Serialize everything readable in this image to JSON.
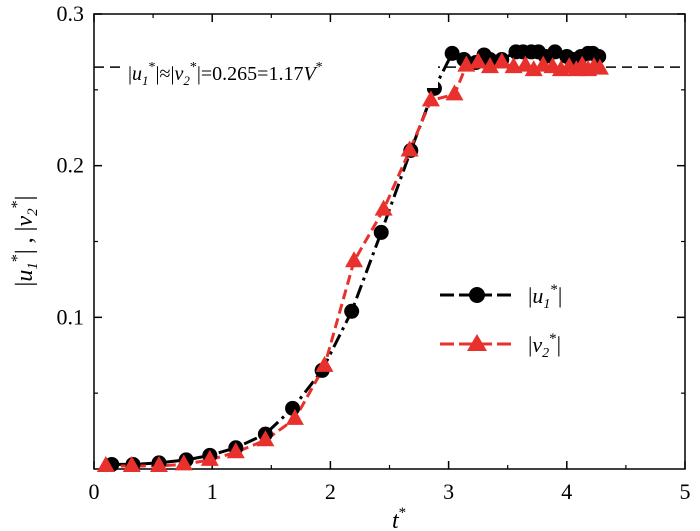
{
  "chart_data": {
    "type": "scatter",
    "xlabel": "t*",
    "ylabel": "|u1*| , |v2*|",
    "xlim": [
      0,
      5
    ],
    "ylim": [
      0,
      0.3
    ],
    "x_ticks": [
      0,
      1,
      2,
      3,
      4,
      5
    ],
    "x_tick_labels": [
      "0",
      "1",
      "2",
      "3",
      "4",
      "5"
    ],
    "y_ticks": [
      0.1,
      0.2,
      0.3
    ],
    "y_tick_labels": [
      "0.1",
      "0.2",
      "0.3"
    ],
    "grid": false,
    "legend_placement": "center-right",
    "reference_line": {
      "y": 0.265,
      "style": "dashed",
      "color": "#000000"
    },
    "annotation": "|u1*|≈|v2*|=0.265=1.17V*",
    "series": [
      {
        "name": "|u1*|",
        "color": "#000000",
        "marker": "circle",
        "line_style": "dash-dot",
        "x": [
          0.15,
          0.33,
          0.55,
          0.78,
          0.98,
          1.2,
          1.45,
          1.68,
          1.93,
          2.18,
          2.43,
          2.68,
          2.88,
          3.03,
          3.13,
          3.23,
          3.3,
          3.35,
          3.45,
          3.57,
          3.63,
          3.7,
          3.76,
          3.82,
          3.9,
          4.0,
          4.05,
          4.12,
          4.18,
          4.22,
          4.27
        ],
        "y": [
          0.003,
          0.003,
          0.004,
          0.006,
          0.009,
          0.014,
          0.023,
          0.04,
          0.065,
          0.104,
          0.156,
          0.21,
          0.251,
          0.274,
          0.27,
          0.268,
          0.273,
          0.27,
          0.27,
          0.275,
          0.275,
          0.275,
          0.275,
          0.272,
          0.275,
          0.272,
          0.27,
          0.272,
          0.274,
          0.274,
          0.272
        ]
      },
      {
        "name": "|v2*|",
        "color": "#e8302c",
        "marker": "triangle",
        "line_style": "dashed",
        "x": [
          0.1,
          0.32,
          0.55,
          0.76,
          0.98,
          1.2,
          1.45,
          1.7,
          1.95,
          2.2,
          2.45,
          2.67,
          2.85,
          3.05,
          3.15,
          3.25,
          3.35,
          3.45,
          3.55,
          3.65,
          3.72,
          3.8,
          3.88,
          3.95,
          4.02,
          4.08,
          4.13,
          4.18,
          4.23,
          4.28
        ],
        "y": [
          0.002,
          0.002,
          0.002,
          0.003,
          0.006,
          0.011,
          0.019,
          0.033,
          0.068,
          0.137,
          0.171,
          0.21,
          0.243,
          0.247,
          0.266,
          0.268,
          0.265,
          0.268,
          0.265,
          0.266,
          0.263,
          0.266,
          0.265,
          0.263,
          0.265,
          0.263,
          0.266,
          0.263,
          0.265,
          0.264
        ]
      }
    ]
  }
}
